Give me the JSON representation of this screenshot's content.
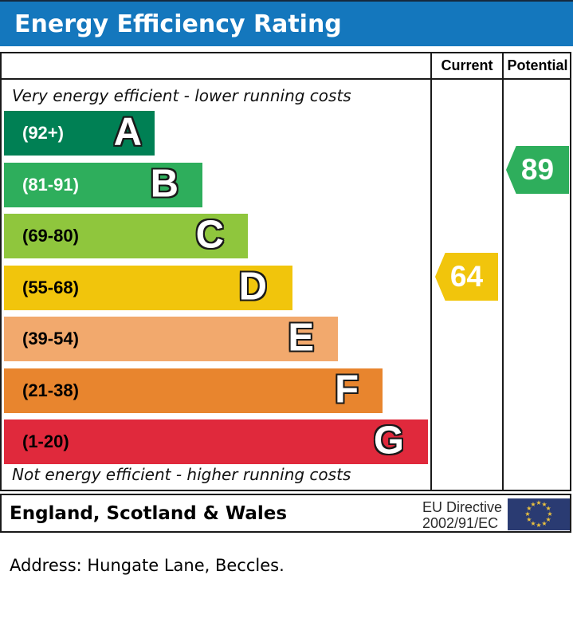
{
  "header": {
    "title": "Energy Efficiency Rating"
  },
  "table": {
    "columns": [
      "Current",
      "Potential"
    ]
  },
  "notes": {
    "top": "Very energy efficient - lower running costs",
    "bottom": "Not energy efficient - higher running costs"
  },
  "chart_data": {
    "type": "bar",
    "title": "Energy Efficiency Rating",
    "bands": [
      {
        "letter": "A",
        "range": "(92+)",
        "color": "#008054",
        "label_color": "#ffffff"
      },
      {
        "letter": "B",
        "range": "(81-91)",
        "color": "#2eae5c",
        "label_color": "#ffffff"
      },
      {
        "letter": "C",
        "range": "(69-80)",
        "color": "#8fc63d",
        "label_color": "#000000"
      },
      {
        "letter": "D",
        "range": "(55-68)",
        "color": "#f1c50c",
        "label_color": "#000000"
      },
      {
        "letter": "E",
        "range": "(39-54)",
        "color": "#f2a96d",
        "label_color": "#000000"
      },
      {
        "letter": "F",
        "range": "(21-38)",
        "color": "#e8852e",
        "label_color": "#000000"
      },
      {
        "letter": "G",
        "range": "(1-20)",
        "color": "#e0293c",
        "label_color": "#000000"
      }
    ],
    "current": {
      "value": 64,
      "band": "D",
      "color": "#f1c50c"
    },
    "potential": {
      "value": 89,
      "band": "B",
      "color": "#2eae5c"
    }
  },
  "footer": {
    "region": "England, Scotland & Wales",
    "directive_line1": "EU Directive",
    "directive_line2": "2002/91/EC",
    "flag_color": "#2a3b72",
    "star_color": "#ecc23e"
  },
  "address_line": "Address: Hungate Lane, Beccles."
}
